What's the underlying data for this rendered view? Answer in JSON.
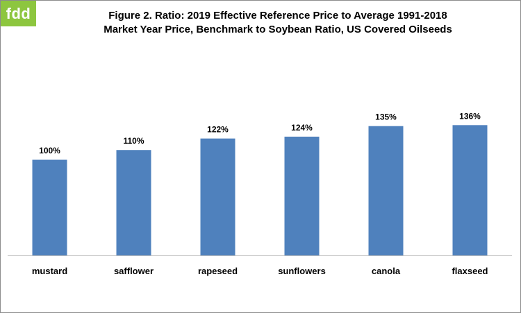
{
  "logo": {
    "text": "fdd",
    "color": "#8dc63f"
  },
  "title": {
    "line1": "Figure 2.  Ratio: 2019 Effective Reference Price to Average 1991-2018",
    "line2": "Market Year Price, Benchmark to Soybean Ratio, US Covered Oilseeds"
  },
  "chart_data": {
    "type": "bar",
    "categories": [
      "mustard",
      "safflower",
      "rapeseed",
      "sunflowers",
      "canola",
      "flaxseed"
    ],
    "values": [
      100,
      110,
      122,
      124,
      135,
      136
    ],
    "data_labels": [
      "100%",
      "110%",
      "122%",
      "124%",
      "135%",
      "136%"
    ],
    "unit": "%",
    "ylim": [
      0,
      250
    ],
    "bar_color": "#4f81bd",
    "grid": false,
    "legend": "none"
  }
}
